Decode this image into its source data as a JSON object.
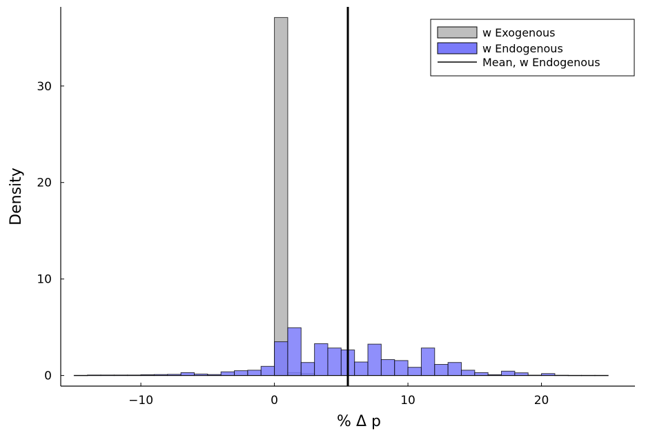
{
  "chart_data": {
    "type": "bar",
    "xlabel": "% Δ p",
    "ylabel": "Density",
    "xlim": [
      -16,
      27
    ],
    "ylim": [
      -1.1,
      38.2
    ],
    "xticks": [
      -10,
      0,
      10,
      20
    ],
    "yticks": [
      0,
      10,
      20,
      30
    ],
    "x_tick_labels": [
      "−10",
      "0",
      "10",
      "20"
    ],
    "y_tick_labels": [
      "0",
      "10",
      "20",
      "30"
    ],
    "grid": false,
    "legend_position": "top-right",
    "series": [
      {
        "name": "w Exogenous",
        "color": "#bebebe",
        "bin_start": 0,
        "bin_width": 1,
        "values": [
          37.1,
          0.3,
          0.2
        ]
      },
      {
        "name": "w Endogenous",
        "color": "#7b7bfa",
        "bin_start": -15,
        "bin_width": 1,
        "values": [
          0.02,
          0.05,
          0.05,
          0.05,
          0.05,
          0.08,
          0.1,
          0.12,
          0.3,
          0.15,
          0.1,
          0.38,
          0.5,
          0.55,
          0.95,
          3.5,
          4.95,
          1.35,
          3.3,
          2.85,
          2.65,
          1.4,
          3.25,
          1.65,
          1.55,
          0.85,
          2.85,
          1.15,
          1.35,
          0.55,
          0.3,
          0.08,
          0.45,
          0.28,
          0.04,
          0.2,
          0.03,
          0.02,
          0.02,
          0.02
        ]
      },
      {
        "name": "Mean, w Endogenous",
        "type": "vline",
        "color": "#000000",
        "x": 5.5
      }
    ]
  }
}
